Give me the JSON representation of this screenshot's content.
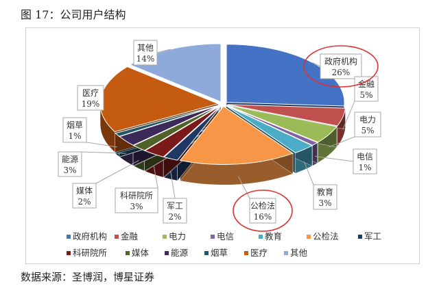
{
  "figure_title": "图 17：公司用户结构",
  "source_note": "数据来源：圣博润，博星证券",
  "chart_data": {
    "type": "pie",
    "title": "",
    "slices": [
      {
        "name": "政府机构",
        "value": 26,
        "label": "26%",
        "color": "#4472c4"
      },
      {
        "name": "金融",
        "value": 5,
        "label": "5%",
        "color": "#c0504d"
      },
      {
        "name": "电力",
        "value": 5,
        "label": "5%",
        "color": "#9bbb59"
      },
      {
        "name": "电信",
        "value": 1,
        "label": "1%",
        "color": "#8064a2"
      },
      {
        "name": "教育",
        "value": 3,
        "label": "3%",
        "color": "#4bacc6"
      },
      {
        "name": "公检法",
        "value": 16,
        "label": "16%",
        "color": "#f79646"
      },
      {
        "name": "军工",
        "value": 2,
        "label": "2%",
        "color": "#1f3864"
      },
      {
        "name": "科研院所",
        "value": 3,
        "label": "3%",
        "color": "#7b1a1a"
      },
      {
        "name": "媒体",
        "value": 2,
        "label": "2%",
        "color": "#4f6228"
      },
      {
        "name": "能源",
        "value": 3,
        "label": "3%",
        "color": "#3b2a5a"
      },
      {
        "name": "烟草",
        "value": 1,
        "label": "1%",
        "color": "#205867"
      },
      {
        "name": "医疗",
        "value": 19,
        "label": "19%",
        "color": "#c55a11"
      },
      {
        "name": "其他",
        "value": 14,
        "label": "14%",
        "color": "#8eaadb"
      }
    ],
    "highlighted": [
      "政府机构",
      "公检法"
    ],
    "highlight_color": "#e03030",
    "legend_position": "bottom"
  }
}
